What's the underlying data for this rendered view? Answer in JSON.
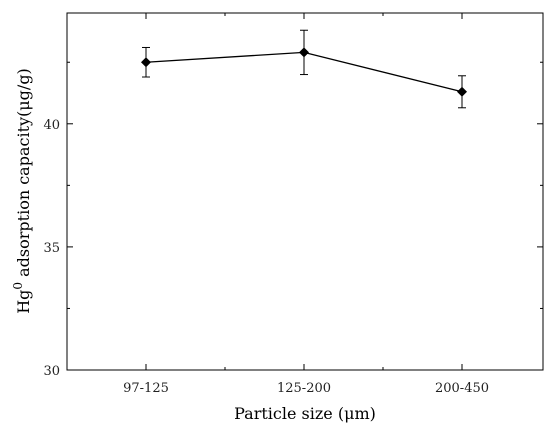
{
  "chart_data": {
    "type": "line",
    "categories": [
      "97-125",
      "125-200",
      "200-450"
    ],
    "series": [
      {
        "values": [
          42.5,
          42.9,
          41.3
        ],
        "errors": [
          0.6,
          0.9,
          0.65
        ],
        "marker": "diamond",
        "color": "#000000"
      }
    ],
    "xlabel": "Particle size (μm)",
    "ylabel": {
      "base": "Hg",
      "sup": "0",
      "rest": " adsorption capacity(μg/g)"
    },
    "ylim": [
      30,
      44.5
    ],
    "yticks_major": [
      30,
      35,
      40
    ],
    "yticks_minor": [
      32.5,
      37.5,
      42.5
    ],
    "grid": false,
    "legend": "none"
  }
}
